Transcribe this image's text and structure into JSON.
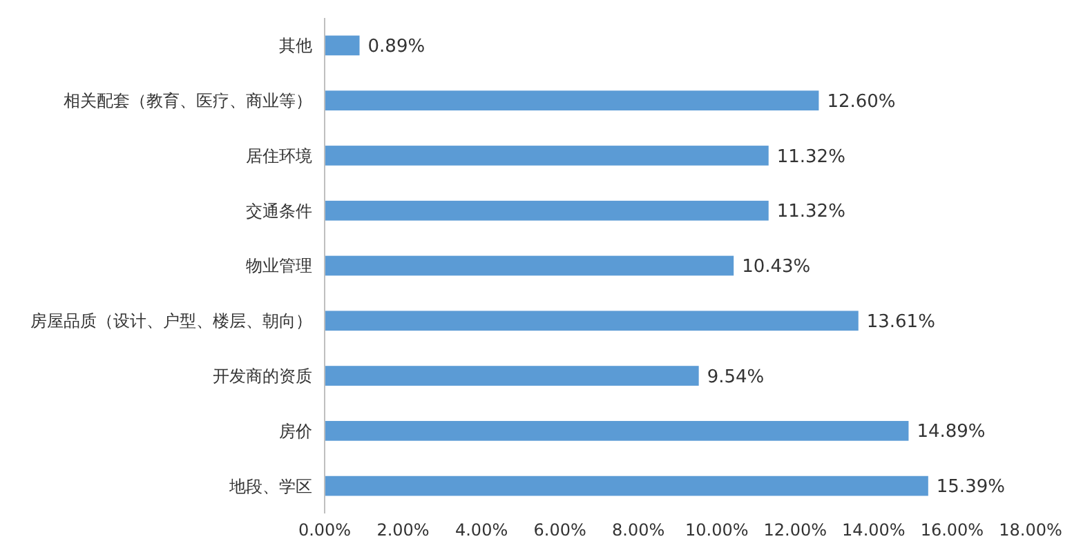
{
  "chart_data": {
    "type": "bar",
    "orientation": "horizontal",
    "categories": [
      "其他",
      "相关配套（教育、医疗、商业等）",
      "居住环境",
      "交通条件",
      "物业管理",
      "房屋品质（设计、户型、楼层、朝向）",
      "开发商的资质",
      "房价",
      "地段、学区"
    ],
    "values": [
      0.89,
      12.6,
      11.32,
      11.32,
      10.43,
      13.61,
      9.54,
      14.89,
      15.39
    ],
    "value_labels": [
      "0.89%",
      "12.60%",
      "11.32%",
      "11.32%",
      "10.43%",
      "13.61%",
      "9.54%",
      "14.89%",
      "15.39%"
    ],
    "color": "#5b9bd5",
    "xlim": [
      0,
      18
    ],
    "xticks": [
      {
        "value": 0,
        "label": "0.00%"
      },
      {
        "value": 2,
        "label": "2.00%"
      },
      {
        "value": 4,
        "label": "4.00%"
      },
      {
        "value": 6,
        "label": "6.00%"
      },
      {
        "value": 8,
        "label": "8.00%"
      },
      {
        "value": 10,
        "label": "10.00%"
      },
      {
        "value": 12,
        "label": "12.00%"
      },
      {
        "value": 14,
        "label": "14.00%"
      },
      {
        "value": 16,
        "label": "16.00%"
      },
      {
        "value": 18,
        "label": "18.00%"
      }
    ],
    "grid": false
  }
}
